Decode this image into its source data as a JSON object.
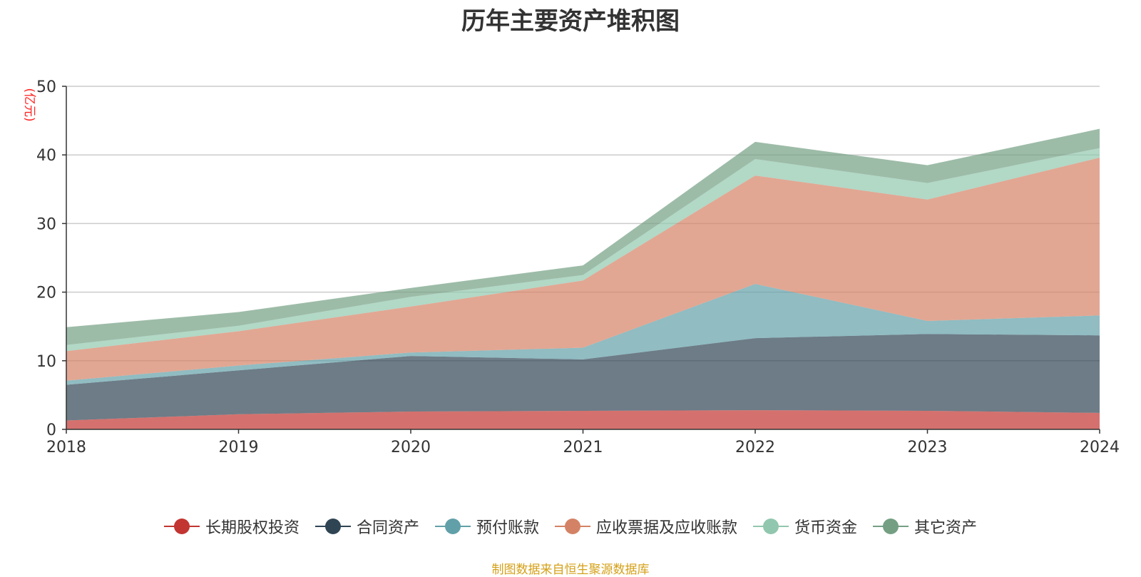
{
  "title": "历年主要资产堆积图",
  "unit_label": "(亿元)",
  "source_text": "制图数据来自恒生聚源数据库",
  "chart_data": {
    "type": "area",
    "stacked": true,
    "title": "历年主要资产堆积图",
    "xlabel": "",
    "ylabel": "(亿元)",
    "categories": [
      "2018",
      "2019",
      "2020",
      "2021",
      "2022",
      "2023",
      "2024"
    ],
    "ylim": [
      0,
      50
    ],
    "yticks": [
      0,
      10,
      20,
      30,
      40,
      50
    ],
    "grid": true,
    "legend_position": "bottom",
    "series": [
      {
        "name": "长期股权投资",
        "color": "#c23531",
        "values": [
          1.3,
          2.2,
          2.6,
          2.7,
          2.8,
          2.7,
          2.4
        ]
      },
      {
        "name": "合同资产",
        "color": "#2f4554",
        "values": [
          5.2,
          6.4,
          8.1,
          7.5,
          10.5,
          11.2,
          11.3
        ]
      },
      {
        "name": "预付账款",
        "color": "#61a0a8",
        "values": [
          0.6,
          0.7,
          0.5,
          1.7,
          7.9,
          1.9,
          2.9
        ]
      },
      {
        "name": "应收票据及应收账款",
        "color": "#d48265",
        "values": [
          4.3,
          5.0,
          6.7,
          9.8,
          15.8,
          17.7,
          23.0
        ]
      },
      {
        "name": "货币资金",
        "color": "#91c7ae",
        "values": [
          0.9,
          0.8,
          1.4,
          0.8,
          2.4,
          2.4,
          1.4
        ]
      },
      {
        "name": "其它资产",
        "color": "#749f83",
        "values": [
          2.6,
          2.0,
          1.3,
          1.4,
          2.5,
          2.6,
          2.8
        ]
      }
    ]
  }
}
